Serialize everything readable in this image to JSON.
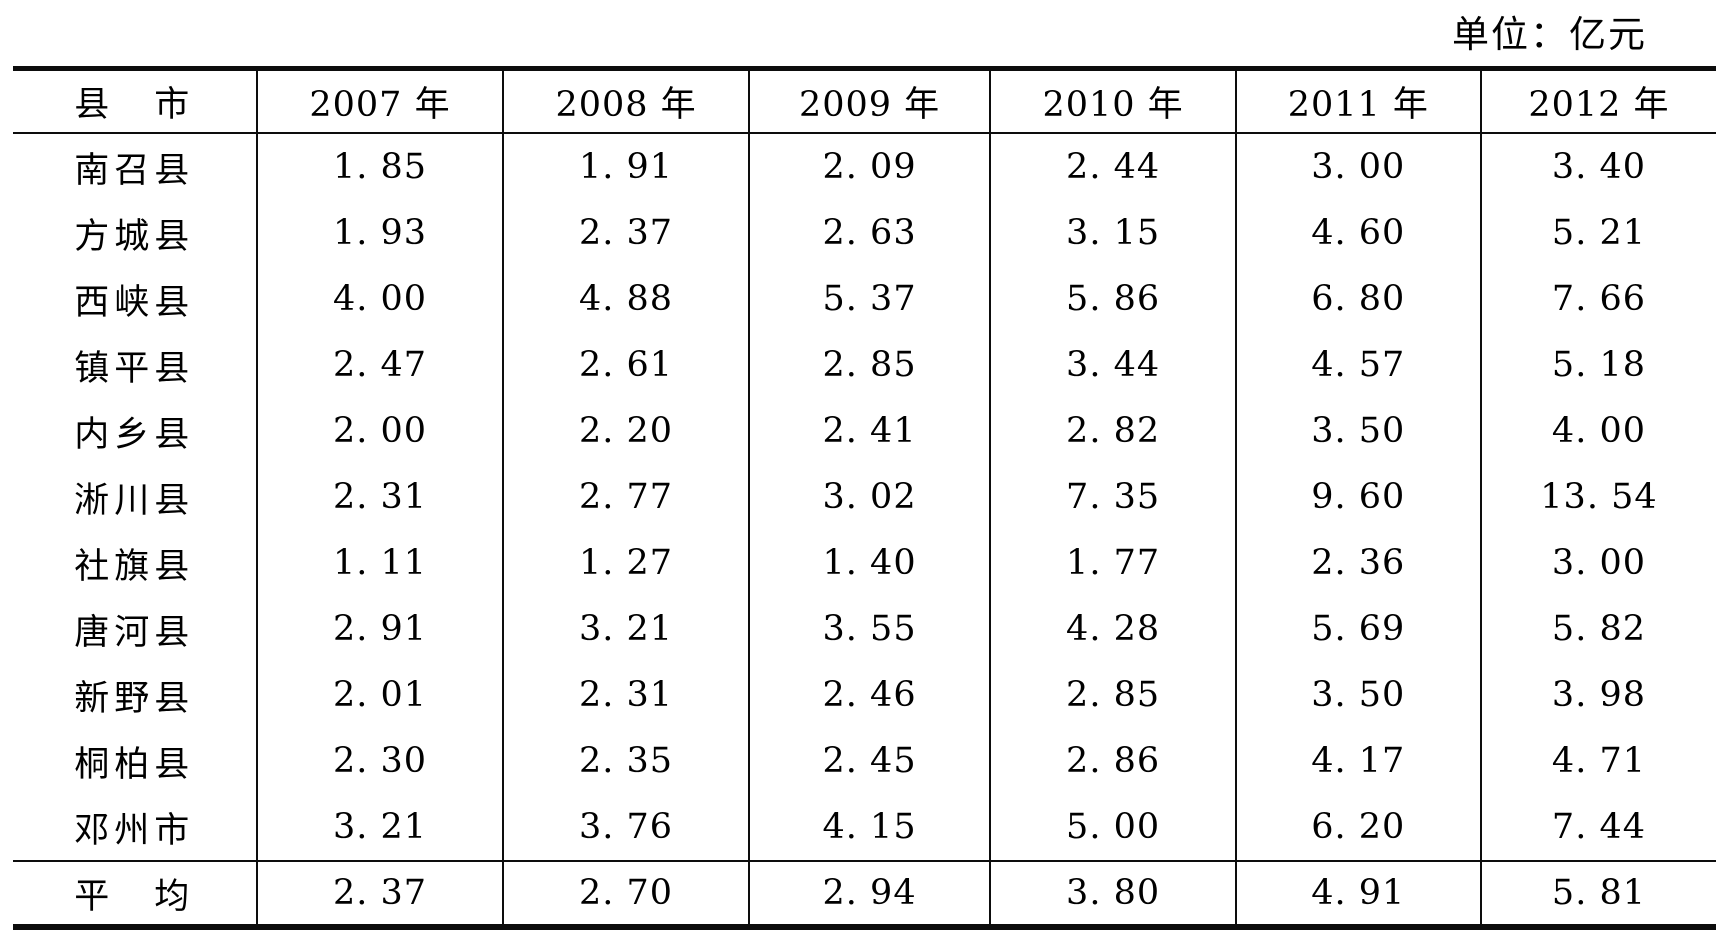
{
  "unit_label": "单位：亿元",
  "table": {
    "header": [
      "县　市",
      "2007 年",
      "2008 年",
      "2009 年",
      "2010 年",
      "2011 年",
      "2012 年"
    ],
    "rows": [
      [
        "南召县",
        "1. 85",
        "1. 91",
        "2. 09",
        "2. 44",
        "3. 00",
        "3. 40"
      ],
      [
        "方城县",
        "1. 93",
        "2. 37",
        "2. 63",
        "3. 15",
        "4. 60",
        "5. 21"
      ],
      [
        "西峡县",
        "4. 00",
        "4. 88",
        "5. 37",
        "5. 86",
        "6. 80",
        "7. 66"
      ],
      [
        "镇平县",
        "2. 47",
        "2. 61",
        "2. 85",
        "3. 44",
        "4. 57",
        "5. 18"
      ],
      [
        "内乡县",
        "2. 00",
        "2. 20",
        "2. 41",
        "2. 82",
        "3. 50",
        "4. 00"
      ],
      [
        "淅川县",
        "2. 31",
        "2. 77",
        "3. 02",
        "7. 35",
        "9. 60",
        "13. 54"
      ],
      [
        "社旗县",
        "1. 11",
        "1. 27",
        "1. 40",
        "1. 77",
        "2. 36",
        "3. 00"
      ],
      [
        "唐河县",
        "2. 91",
        "3. 21",
        "3. 55",
        "4. 28",
        "5. 69",
        "5. 82"
      ],
      [
        "新野县",
        "2. 01",
        "2. 31",
        "2. 46",
        "2. 85",
        "3. 50",
        "3. 98"
      ],
      [
        "桐柏县",
        "2. 30",
        "2. 35",
        "2. 45",
        "2. 86",
        "4. 17",
        "4. 71"
      ],
      [
        "邓州市",
        "3. 21",
        "3. 76",
        "4. 15",
        "5. 00",
        "6. 20",
        "7. 44"
      ]
    ],
    "summary_row": [
      "平　均",
      "2. 37",
      "2. 70",
      "2. 94",
      "3. 80",
      "4. 91",
      "5. 81"
    ]
  },
  "chart_data": {
    "type": "table",
    "unit": "亿元",
    "columns": [
      "2007",
      "2008",
      "2009",
      "2010",
      "2011",
      "2012"
    ],
    "series": [
      {
        "name": "南召县",
        "values": [
          1.85,
          1.91,
          2.09,
          2.44,
          3.0,
          3.4
        ]
      },
      {
        "name": "方城县",
        "values": [
          1.93,
          2.37,
          2.63,
          3.15,
          4.6,
          5.21
        ]
      },
      {
        "name": "西峡县",
        "values": [
          4.0,
          4.88,
          5.37,
          5.86,
          6.8,
          7.66
        ]
      },
      {
        "name": "镇平县",
        "values": [
          2.47,
          2.61,
          2.85,
          3.44,
          4.57,
          5.18
        ]
      },
      {
        "name": "内乡县",
        "values": [
          2.0,
          2.2,
          2.41,
          2.82,
          3.5,
          4.0
        ]
      },
      {
        "name": "淅川县",
        "values": [
          2.31,
          2.77,
          3.02,
          7.35,
          9.6,
          13.54
        ]
      },
      {
        "name": "社旗县",
        "values": [
          1.11,
          1.27,
          1.4,
          1.77,
          2.36,
          3.0
        ]
      },
      {
        "name": "唐河县",
        "values": [
          2.91,
          3.21,
          3.55,
          4.28,
          5.69,
          5.82
        ]
      },
      {
        "name": "新野县",
        "values": [
          2.01,
          2.31,
          2.46,
          2.85,
          3.5,
          3.98
        ]
      },
      {
        "name": "桐柏县",
        "values": [
          2.3,
          2.35,
          2.45,
          2.86,
          4.17,
          4.71
        ]
      },
      {
        "name": "邓州市",
        "values": [
          3.21,
          3.76,
          4.15,
          5.0,
          6.2,
          7.44
        ]
      }
    ],
    "average_row": {
      "name": "平均",
      "values": [
        2.37,
        2.7,
        2.94,
        3.8,
        4.91,
        5.81
      ]
    }
  }
}
